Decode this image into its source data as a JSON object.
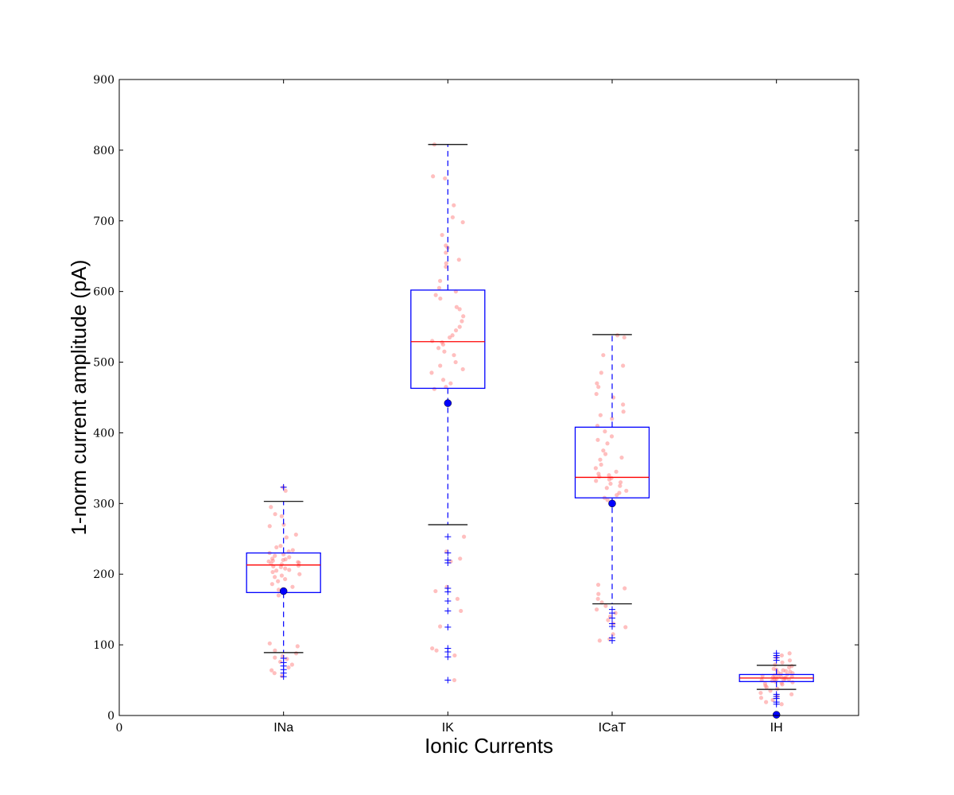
{
  "chart_data": {
    "type": "box",
    "xlabel": "Ionic Currents",
    "ylabel": "1-norm current amplitude (pA)",
    "ylim": [
      0,
      900
    ],
    "xlim": [
      0,
      4.5
    ],
    "yticks": [
      0,
      100,
      200,
      300,
      400,
      500,
      600,
      700,
      800,
      900
    ],
    "x_zero_tick": "0",
    "grid": false,
    "categories": [
      "INa",
      "IK",
      "ICaT",
      "IH"
    ],
    "colors": {
      "box": "#0000ff",
      "median": "#ff0000",
      "whisker": "#0000ff",
      "cap": "#000000",
      "scatter": "#ff8080",
      "reference_marker": "#0000ff"
    },
    "boxes": [
      {
        "category": "INa",
        "q1": 174,
        "median": 213,
        "q3": 230,
        "whisker_low": 89,
        "whisker_high": 303,
        "reference_point": 176,
        "outliers": [
          323,
          81,
          75,
          70,
          65,
          60,
          55
        ],
        "scatter": [
          323,
          318,
          295,
          285,
          282,
          270,
          268,
          256,
          252,
          240,
          238,
          234,
          232,
          230,
          228,
          226,
          224,
          222,
          221,
          220,
          219,
          218,
          217,
          216,
          215,
          214,
          212,
          211,
          210,
          208,
          206,
          205,
          203,
          200,
          198,
          196,
          193,
          190,
          186,
          182,
          178,
          170,
          102,
          98,
          92,
          88,
          84,
          82,
          80,
          76,
          72,
          68,
          64,
          60,
          56
        ]
      },
      {
        "category": "IK",
        "q1": 463,
        "median": 529,
        "q3": 602,
        "whisker_low": 270,
        "whisker_high": 808,
        "reference_point": 442,
        "outliers": [
          253,
          230,
          220,
          216,
          180,
          175,
          162,
          148,
          125,
          95,
          90,
          83,
          50
        ],
        "scatter": [
          808,
          763,
          760,
          722,
          705,
          698,
          680,
          665,
          662,
          655,
          645,
          640,
          635,
          615,
          605,
          600,
          595,
          590,
          578,
          575,
          565,
          558,
          550,
          545,
          538,
          535,
          530,
          528,
          525,
          520,
          515,
          510,
          500,
          495,
          490,
          485,
          475,
          470,
          465,
          462,
          253,
          232,
          222,
          218,
          182,
          176,
          165,
          148,
          126,
          95,
          92,
          85,
          50
        ]
      },
      {
        "category": "ICaT",
        "q1": 308,
        "median": 337,
        "q3": 408,
        "whisker_low": 158,
        "whisker_high": 539,
        "reference_point": 300,
        "outliers": [
          150,
          145,
          138,
          130,
          126,
          110,
          106
        ],
        "scatter": [
          538,
          535,
          510,
          495,
          485,
          470,
          465,
          455,
          450,
          440,
          430,
          425,
          420,
          410,
          402,
          395,
          390,
          385,
          375,
          370,
          365,
          362,
          355,
          350,
          345,
          342,
          340,
          338,
          336,
          334,
          332,
          330,
          328,
          325,
          322,
          318,
          315,
          312,
          308,
          305,
          185,
          180,
          172,
          165,
          160,
          155,
          150,
          145,
          140,
          135,
          130,
          125,
          115,
          108,
          106
        ]
      },
      {
        "category": "IH",
        "q1": 48,
        "median": 53,
        "q3": 58,
        "whisker_low": 37,
        "whisker_high": 71,
        "reference_point": 1,
        "outliers": [
          88,
          85,
          82,
          78,
          30,
          27,
          24,
          19,
          16
        ],
        "scatter": [
          88,
          85,
          82,
          78,
          75,
          72,
          70,
          68,
          66,
          65,
          64,
          63,
          62,
          61,
          60,
          59,
          58,
          57,
          56,
          55,
          55,
          54,
          54,
          53,
          53,
          52,
          52,
          51,
          50,
          50,
          49,
          48,
          47,
          46,
          45,
          44,
          42,
          40,
          38,
          35,
          32,
          30,
          27,
          25,
          22,
          19,
          16
        ]
      }
    ]
  }
}
